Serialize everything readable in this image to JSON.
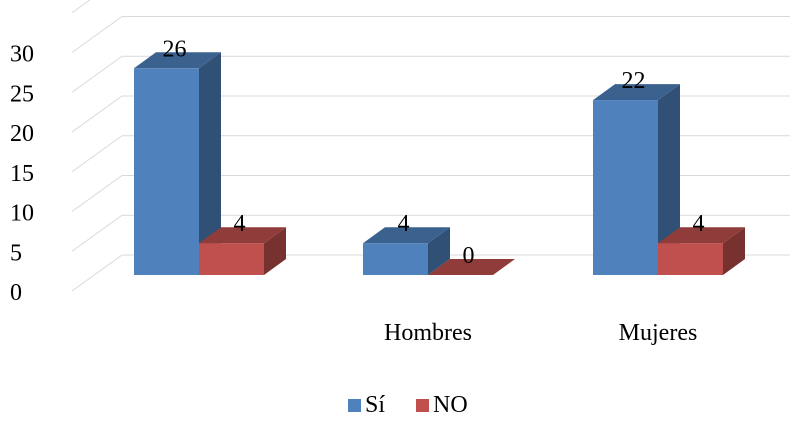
{
  "chart_data": {
    "type": "bar",
    "style": "3d-clustered-column",
    "categories": [
      "",
      "Hombres",
      "Mujeres"
    ],
    "series": [
      {
        "name": "Sí",
        "values": [
          26,
          4,
          22
        ],
        "color": "#4F81BD"
      },
      {
        "name": "NO",
        "values": [
          4,
          0,
          4
        ],
        "color": "#C0504D"
      }
    ],
    "y_ticks": [
      "0",
      "5",
      "10",
      "15",
      "20",
      "25",
      "30"
    ],
    "ylim": [
      0,
      35
    ],
    "grid": true,
    "data_labels": true,
    "legend_position": "bottom"
  }
}
